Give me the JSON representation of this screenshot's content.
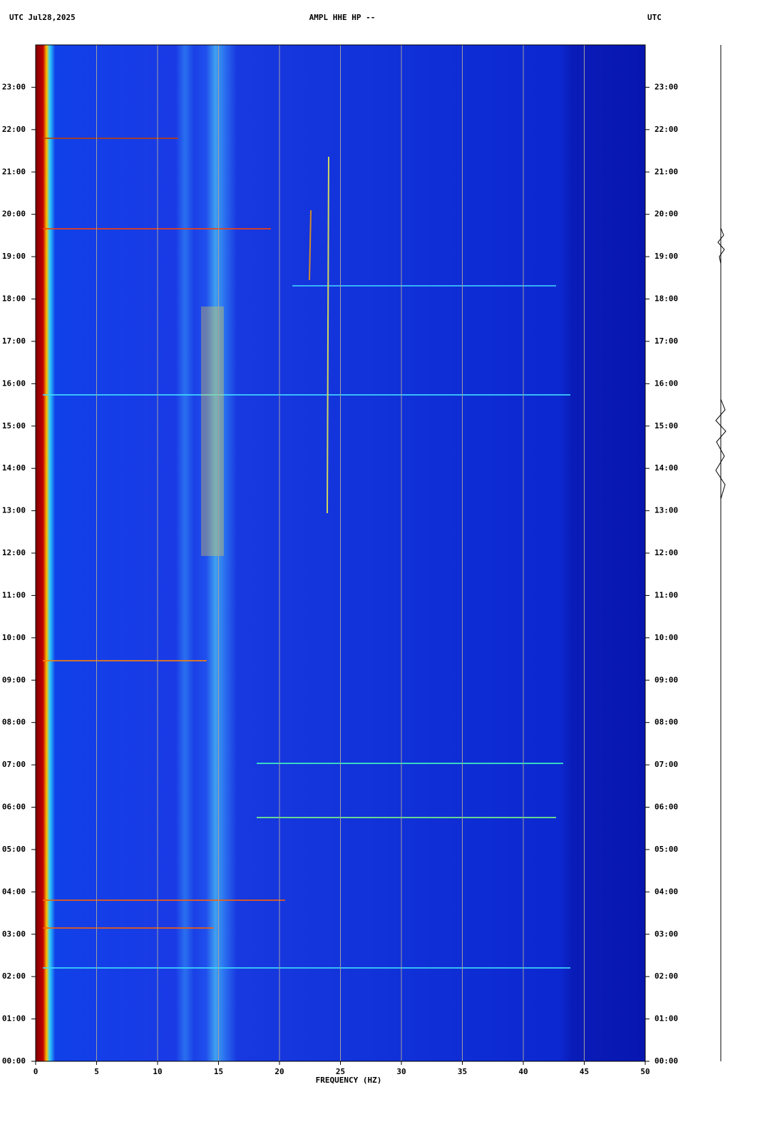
{
  "chart_data": {
    "type": "spectrogram",
    "title_left": "UTC  Jul28,2025",
    "title": "AMPL HHE HP --",
    "title_right": "UTC",
    "x_label": "FREQUENCY (HZ)",
    "xlim": [
      0,
      50
    ],
    "xticks": [
      0,
      5,
      10,
      15,
      20,
      25,
      30,
      35,
      40,
      45,
      50
    ],
    "ylim": [
      0,
      24
    ],
    "yticks": [
      {
        "value": 0,
        "label": "00:00"
      },
      {
        "value": 1,
        "label": "01:00"
      },
      {
        "value": 2,
        "label": "02:00"
      },
      {
        "value": 3,
        "label": "03:00"
      },
      {
        "value": 4,
        "label": "04:00"
      },
      {
        "value": 5,
        "label": "05:00"
      },
      {
        "value": 6,
        "label": "06:00"
      },
      {
        "value": 7,
        "label": "07:00"
      },
      {
        "value": 8,
        "label": "08:00"
      },
      {
        "value": 9,
        "label": "09:00"
      },
      {
        "value": 10,
        "label": "10:00"
      },
      {
        "value": 11,
        "label": "11:00"
      },
      {
        "value": 12,
        "label": "12:00"
      },
      {
        "value": 13,
        "label": "13:00"
      },
      {
        "value": 14,
        "label": "14:00"
      },
      {
        "value": 15,
        "label": "15:00"
      },
      {
        "value": 16,
        "label": "16:00"
      },
      {
        "value": 17,
        "label": "17:00"
      },
      {
        "value": 18,
        "label": "18:00"
      },
      {
        "value": 19,
        "label": "19:00"
      },
      {
        "value": 20,
        "label": "20:00"
      },
      {
        "value": 21,
        "label": "21:00"
      },
      {
        "value": 22,
        "label": "22:00"
      },
      {
        "value": 23,
        "label": "23:00"
      }
    ],
    "grid": true,
    "grid_color": "#a0a0a0"
  }
}
